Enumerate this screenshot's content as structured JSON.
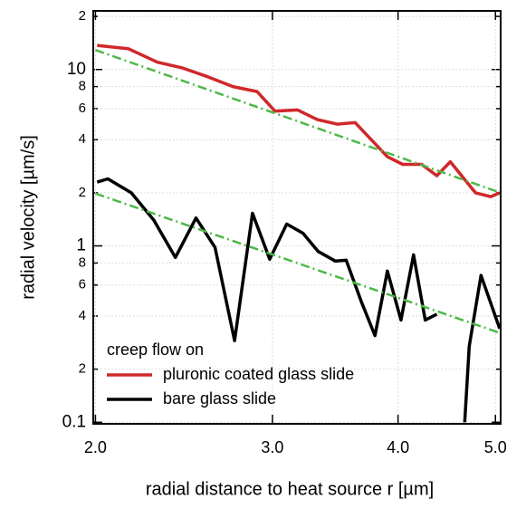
{
  "chart_data": {
    "type": "line",
    "xlabel": "radial distance to heat source r [µm]",
    "ylabel": "radial velocity [µm/s]",
    "xscale": "log",
    "yscale": "log",
    "grid": true,
    "xlim": [
      1.99,
      5.06
    ],
    "ylim": [
      0.098,
      21.5
    ],
    "xticks": [
      {
        "value": 2,
        "label": "2.0"
      },
      {
        "value": 3,
        "label": "3.0"
      },
      {
        "value": 4,
        "label": "4.0"
      },
      {
        "value": 5,
        "label": "5.0"
      }
    ],
    "yticks": [
      0.1,
      {
        "value": 0.2,
        "label": "2"
      },
      {
        "value": 0.4,
        "label": "4"
      },
      {
        "value": 0.6,
        "label": "6"
      },
      {
        "value": 0.8,
        "label": "8"
      },
      1,
      2,
      4,
      6,
      8,
      10,
      {
        "value": 20,
        "label": "2"
      }
    ],
    "legend_title": "creep flow on",
    "series": [
      {
        "name": "pluronic coated glass slide",
        "color": "#d0282a",
        "x": [
          2.008,
          2.158,
          2.305,
          2.442,
          2.586,
          2.74,
          2.896,
          3.018,
          3.178,
          3.325,
          3.48,
          3.626,
          3.904,
          4.043,
          4.222,
          4.372,
          4.509,
          4.777,
          4.946,
          5.048
        ],
        "values": [
          13.7,
          13.1,
          11.0,
          10.2,
          9.1,
          8.0,
          7.5,
          5.8,
          5.9,
          5.2,
          4.9,
          5.0,
          3.2,
          2.9,
          2.9,
          2.5,
          3.0,
          2.0,
          1.9,
          2.0
        ]
      },
      {
        "name": "bare glass slide",
        "color": "#000000",
        "x": [
          2.008,
          2.058,
          2.171,
          2.286,
          2.402,
          2.518,
          2.63,
          2.751,
          2.866,
          2.981,
          3.1,
          3.217,
          3.332,
          3.465,
          3.552,
          3.679,
          3.794,
          3.904,
          4.027,
          4.145,
          4.257,
          4.372,
          null,
          4.66,
          4.709,
          4.837,
          5.048
        ],
        "values": [
          2.3,
          2.4,
          2.0,
          1.4,
          0.86,
          1.44,
          0.98,
          0.29,
          1.53,
          0.84,
          1.33,
          1.18,
          0.93,
          0.82,
          0.83,
          0.48,
          0.31,
          0.72,
          0.38,
          0.89,
          0.38,
          0.41,
          null,
          0.1,
          0.27,
          0.68,
          0.34
        ]
      },
      {
        "color": "#4db848",
        "style": "dashdot",
        "x": [
          2.0,
          5.06
        ],
        "values": [
          12.9,
          2.0
        ]
      },
      {
        "color": "#4db848",
        "style": "dashdot",
        "x": [
          2.0,
          5.06
        ],
        "values": [
          1.98,
          0.32
        ]
      }
    ]
  }
}
